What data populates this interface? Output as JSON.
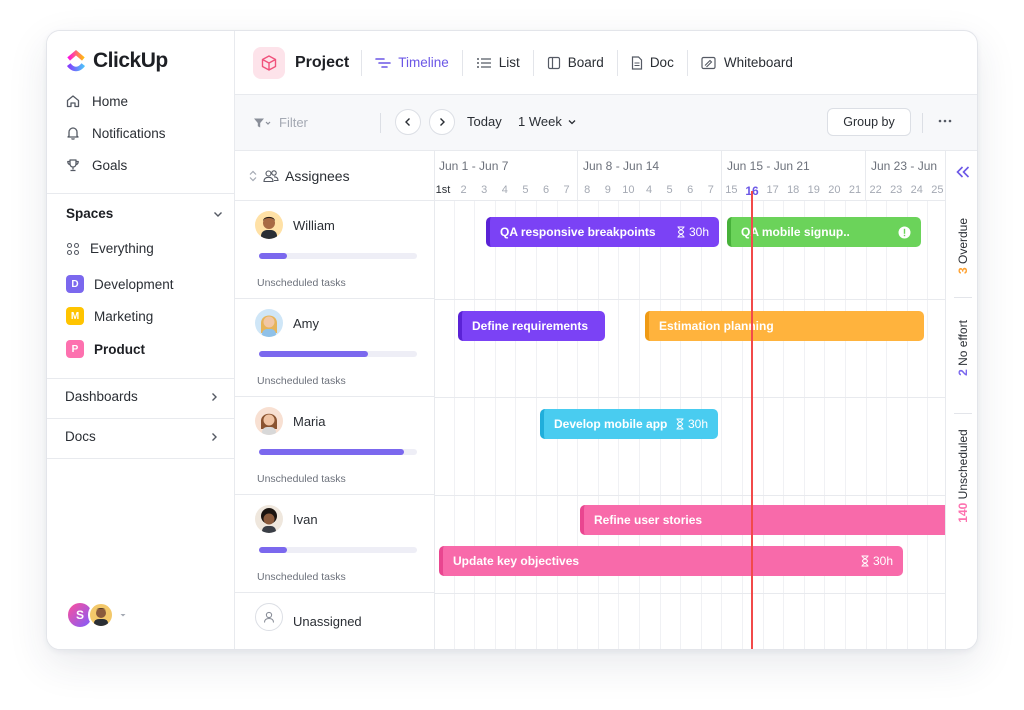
{
  "app": {
    "logo_text": "ClickUp"
  },
  "sidebar": {
    "nav": [
      {
        "label": "Home",
        "icon": "home-icon"
      },
      {
        "label": "Notifications",
        "icon": "bell-icon"
      },
      {
        "label": "Goals",
        "icon": "trophy-icon"
      }
    ],
    "spaces_heading": "Spaces",
    "spaces": [
      {
        "letter": "",
        "label": "Everything",
        "color": ""
      },
      {
        "letter": "D",
        "label": "Development",
        "color": "#7b68ee"
      },
      {
        "letter": "M",
        "label": "Marketing",
        "color": "#ffc400"
      },
      {
        "letter": "P",
        "label": "Product",
        "color": "#fd71af"
      }
    ],
    "dashboards": "Dashboards",
    "docs": "Docs",
    "user_initial": "S"
  },
  "header": {
    "project_title": "Project",
    "tabs": [
      {
        "label": "Timeline",
        "active": true
      },
      {
        "label": "List",
        "active": false
      },
      {
        "label": "Board",
        "active": false
      },
      {
        "label": "Doc",
        "active": false
      },
      {
        "label": "Whiteboard",
        "active": false
      }
    ]
  },
  "toolbar": {
    "filter_placeholder": "Filter",
    "today_label": "Today",
    "range_label": "1 Week",
    "group_by_label": "Group by"
  },
  "timeline": {
    "assignees_heading": "Assignees",
    "weeks": [
      "Jun 1 - Jun 7",
      "Jun 8 - Jun 14",
      "Jun 15 - Jun 21",
      "Jun 23 - Jun"
    ],
    "days": [
      "1st",
      "2",
      "3",
      "4",
      "5",
      "6",
      "7",
      "8",
      "9",
      "10",
      "4",
      "5",
      "6",
      "7",
      "15",
      "16",
      "17",
      "18",
      "19",
      "20",
      "21",
      "22",
      "23",
      "24",
      "25"
    ],
    "today_day": "16",
    "unscheduled_label": "Unscheduled tasks",
    "assignees": [
      {
        "name": "William",
        "progress": 0.18
      },
      {
        "name": "Amy",
        "progress": 0.69
      },
      {
        "name": "Maria",
        "progress": 0.92
      },
      {
        "name": "Ivan",
        "progress": 0.18
      },
      {
        "name": "Unassigned",
        "progress": null
      }
    ],
    "tasks": [
      {
        "label": "QA responsive breakpoints",
        "estimate": "30h",
        "color": "#7b42f5"
      },
      {
        "label": "QA mobile signup..",
        "estimate": "",
        "color": "#6bd35a",
        "warning": true
      },
      {
        "label": "Define requirements",
        "estimate": "",
        "color": "#7b42f5"
      },
      {
        "label": "Estimation planning",
        "estimate": "",
        "color": "#ffb33d"
      },
      {
        "label": "Develop mobile app",
        "estimate": "30h",
        "color": "#49ccf0"
      },
      {
        "label": "Refine user stories",
        "estimate": "",
        "color": "#f86aaa"
      },
      {
        "label": "Update key objectives",
        "estimate": "30h",
        "color": "#f86aaa"
      }
    ]
  },
  "rail": {
    "overdue": {
      "count": "3",
      "label": "Overdue",
      "color": "#ffa12f"
    },
    "no_effort": {
      "count": "2",
      "label": "No effort",
      "color": "#7b68ee"
    },
    "unscheduled": {
      "count": "140",
      "label": "Unscheduled",
      "color": "#fd71af"
    }
  }
}
